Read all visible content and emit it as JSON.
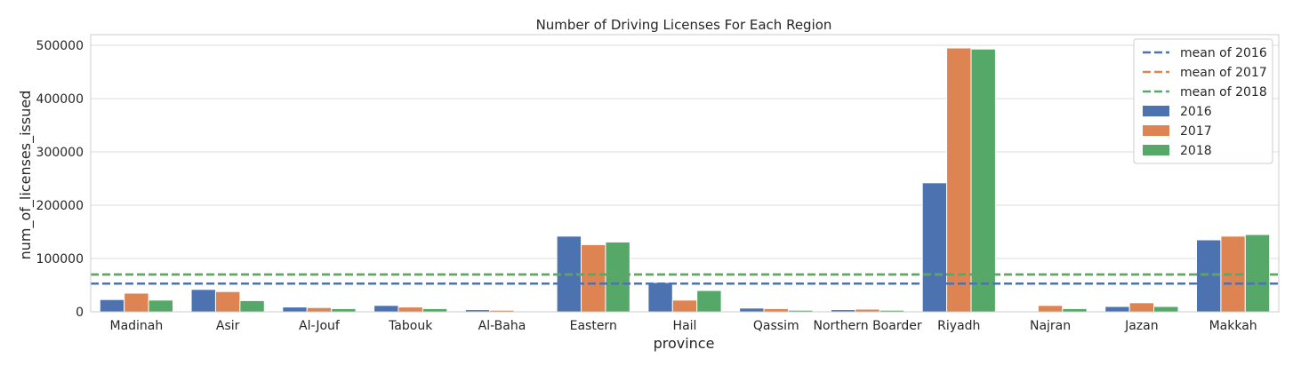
{
  "chart_data": {
    "type": "bar",
    "title": "Number of Driving Licenses For Each Region",
    "xlabel": "province",
    "ylabel": "num_of_licenses_issued",
    "ylim": [
      0,
      520000
    ],
    "yticks": [
      0,
      100000,
      200000,
      300000,
      400000,
      500000
    ],
    "grid": true,
    "legend_position": "top-right",
    "categories": [
      "Madinah",
      "Asir",
      "Al-Jouf",
      "Tabouk",
      "Al-Baha",
      "Eastern",
      "Hail",
      "Qassim",
      "Northern Boarder",
      "Riyadh",
      "Najran",
      "Jazan",
      "Makkah"
    ],
    "series": [
      {
        "name": "2016",
        "color": "#4c72b0",
        "values": [
          23000,
          42000,
          9000,
          12000,
          4000,
          142000,
          55000,
          7000,
          4000,
          242000,
          0,
          10000,
          135000
        ]
      },
      {
        "name": "2017",
        "color": "#dd8452",
        "values": [
          35000,
          38000,
          8000,
          9000,
          3000,
          126000,
          22000,
          6000,
          5000,
          495000,
          12000,
          17000,
          142000
        ]
      },
      {
        "name": "2018",
        "color": "#55a868",
        "values": [
          22000,
          21000,
          6000,
          6000,
          1000,
          131000,
          40000,
          3000,
          3000,
          493000,
          6000,
          10000,
          145000
        ]
      }
    ],
    "reference_lines": [
      {
        "name": "mean of 2016",
        "value": 53000,
        "color": "#4c72b0"
      },
      {
        "name": "mean of 2017",
        "value": 70000,
        "color": "#dd8452"
      },
      {
        "name": "mean of 2018",
        "value": 70000,
        "color": "#55a868"
      }
    ]
  }
}
